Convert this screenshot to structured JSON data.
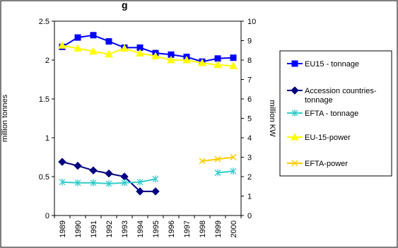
{
  "chart_data": {
    "type": "line",
    "title": "g",
    "years": [
      "1989",
      "1990",
      "1991",
      "1992",
      "1993",
      "1994",
      "1995",
      "1996",
      "1997",
      "1998",
      "1999",
      "2000"
    ],
    "y_left": {
      "label": "million tonnes",
      "min": 0,
      "max": 2.5,
      "ticks": [
        "0",
        "0.5",
        "1",
        "1.5",
        "2",
        "2.5"
      ]
    },
    "y_right": {
      "label": "million KW",
      "min": 0,
      "max": 10,
      "ticks": [
        "0",
        "1",
        "2",
        "3",
        "4",
        "5",
        "6",
        "7",
        "8",
        "9",
        "10"
      ]
    },
    "series": [
      {
        "name": "EU15 - tonnage",
        "axis": "left",
        "color": "#0000FF",
        "marker": "square",
        "values": [
          2.17,
          2.29,
          2.32,
          2.24,
          2.16,
          2.16,
          2.09,
          2.07,
          2.04,
          1.98,
          2.02,
          2.03
        ]
      },
      {
        "name": "Accession countries-tonnage",
        "axis": "left",
        "color": "#000080",
        "marker": "diamond",
        "values": [
          0.69,
          0.64,
          0.58,
          0.54,
          0.5,
          0.31,
          0.31,
          null,
          null,
          null,
          null,
          null
        ]
      },
      {
        "name": "EFTA - tonnage",
        "axis": "left",
        "color": "#33CCCC",
        "marker": "asterisk",
        "values": [
          0.43,
          0.42,
          0.42,
          0.41,
          0.42,
          0.43,
          0.47,
          null,
          null,
          null,
          0.55,
          0.57
        ]
      },
      {
        "name": "EU-15-power",
        "axis": "right",
        "color": "#FFFF00",
        "marker": "triangle",
        "values": [
          8.75,
          8.6,
          8.45,
          8.3,
          8.6,
          8.35,
          8.2,
          8.0,
          8.0,
          7.85,
          7.75,
          7.7
        ]
      },
      {
        "name": "EFTA-power",
        "axis": "right",
        "color": "#FFCC00",
        "marker": "x",
        "values": [
          null,
          null,
          null,
          null,
          null,
          null,
          null,
          null,
          null,
          2.8,
          2.9,
          3.0
        ]
      }
    ],
    "grid": false,
    "legend": "right"
  }
}
